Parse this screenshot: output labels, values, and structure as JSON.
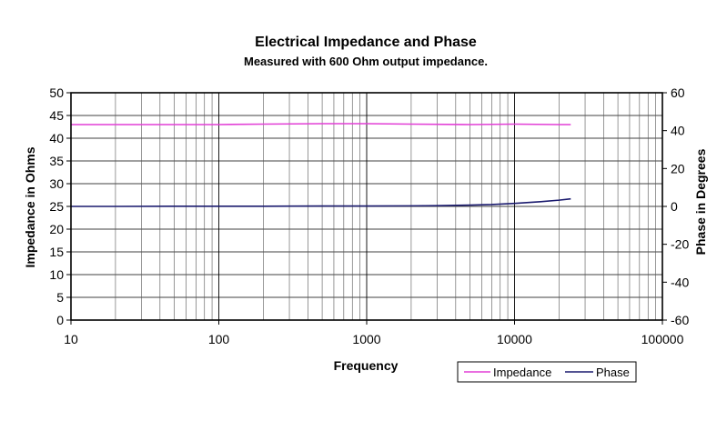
{
  "chart_data": {
    "type": "line",
    "title": "Electrical Impedance and Phase",
    "subtitle": "Measured with 600 Ohm output impedance.",
    "xlabel": "Frequency",
    "ylabel": "Impedance in Ohms",
    "y2label": "Phase in Degrees",
    "xscale": "log",
    "xlim": [
      10,
      100000
    ],
    "ylim": [
      0,
      50
    ],
    "y2lim": [
      -60,
      60
    ],
    "x_ticks": [
      10,
      100,
      1000,
      10000,
      100000
    ],
    "x_tick_labels": [
      "10",
      "100",
      "1000",
      "10000",
      "100000"
    ],
    "y_ticks": [
      0,
      5,
      10,
      15,
      20,
      25,
      30,
      35,
      40,
      45,
      50
    ],
    "y_tick_labels": [
      "0",
      "5",
      "10",
      "15",
      "20",
      "25",
      "30",
      "35",
      "40",
      "45",
      "50"
    ],
    "y2_ticks": [
      -60,
      -40,
      -20,
      0,
      20,
      40,
      60
    ],
    "y2_tick_labels": [
      "-60",
      "-40",
      "-20",
      "0",
      "20",
      "40",
      "60"
    ],
    "grid": true,
    "legend": "bottom-right",
    "series": [
      {
        "name": "Impedance",
        "axis": "left",
        "color": "#e23fd6",
        "x": [
          10,
          12,
          20,
          50,
          100,
          200,
          500,
          1000,
          2000,
          5000,
          10000,
          20000,
          24000
        ],
        "values": [
          43.0,
          43.0,
          43.0,
          43.0,
          43.0,
          43.1,
          43.2,
          43.2,
          43.1,
          43.0,
          43.1,
          43.0,
          43.0
        ]
      },
      {
        "name": "Phase",
        "axis": "right",
        "color": "#1a1a6e",
        "x": [
          10,
          20,
          50,
          100,
          200,
          500,
          1000,
          2000,
          3000,
          5000,
          7000,
          10000,
          15000,
          20000,
          24000
        ],
        "values": [
          0.0,
          0.0,
          0.1,
          0.1,
          0.1,
          0.2,
          0.2,
          0.3,
          0.4,
          0.7,
          1.0,
          1.6,
          2.5,
          3.3,
          4.0
        ]
      }
    ]
  }
}
